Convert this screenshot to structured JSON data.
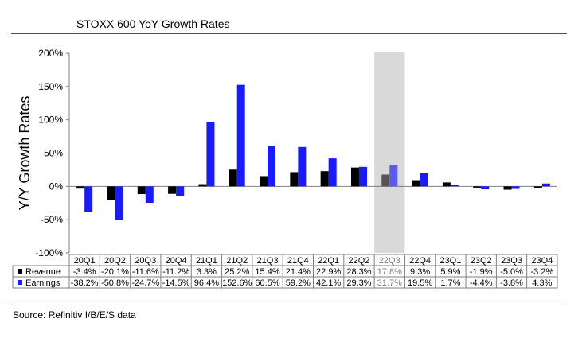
{
  "title": "STOXX 600 YoY Growth Rates",
  "source": "Source: Refinitiv I/B/E/S data",
  "chart_data": {
    "type": "bar",
    "ylabel": "Y/Y Growth Rates",
    "ylim": [
      -100,
      200
    ],
    "yticks": [
      200,
      150,
      100,
      50,
      0,
      -50,
      -100
    ],
    "ytick_labels": [
      "200%",
      "150%",
      "100%",
      "50%",
      "0%",
      "-50%",
      "-100%"
    ],
    "grid": false,
    "highlighted_category": "22Q3",
    "categories": [
      "20Q1",
      "20Q2",
      "20Q3",
      "20Q4",
      "21Q1",
      "21Q2",
      "21Q3",
      "21Q4",
      "22Q1",
      "22Q2",
      "22Q3",
      "22Q4",
      "23Q1",
      "23Q2",
      "23Q3",
      "23Q4"
    ],
    "series": [
      {
        "name": "Revenue",
        "color": "#000000",
        "highlight_color": "#555555",
        "values": [
          -3.4,
          -20.1,
          -11.6,
          -11.2,
          3.3,
          25.2,
          15.4,
          21.4,
          22.9,
          28.3,
          17.8,
          9.3,
          5.9,
          -1.9,
          -5.0,
          -3.2
        ],
        "labels": [
          "-3.4%",
          "-20.1%",
          "-11.6%",
          "-11.2%",
          "3.3%",
          "25.2%",
          "15.4%",
          "21.4%",
          "22.9%",
          "28.3%",
          "17.8%",
          "9.3%",
          "5.9%",
          "-1.9%",
          "-5.0%",
          "-3.2%"
        ]
      },
      {
        "name": "Earnings",
        "color": "#1a1aff",
        "highlight_color": "#5a5aef",
        "values": [
          -38.2,
          -50.8,
          -24.7,
          -14.5,
          96.4,
          152.6,
          60.5,
          59.2,
          42.1,
          29.3,
          31.7,
          19.5,
          1.7,
          -4.4,
          -3.8,
          4.3
        ],
        "labels": [
          "-38.2%",
          "-50.8%",
          "-24.7%",
          "-14.5%",
          "96.4%",
          "152.6%",
          "60.5%",
          "59.2%",
          "42.1%",
          "29.3%",
          "31.7%",
          "19.5%",
          "1.7%",
          "-4.4%",
          "-3.8%",
          "4.3%"
        ]
      }
    ]
  }
}
